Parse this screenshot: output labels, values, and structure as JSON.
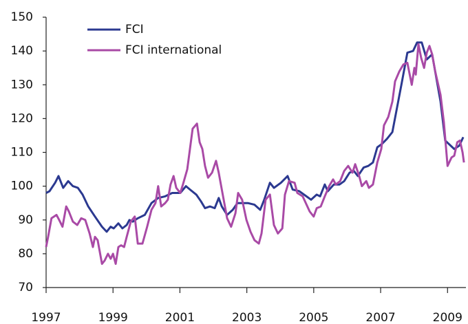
{
  "chart_data": {
    "type": "line",
    "legend": "upper left",
    "xlim": [
      1997,
      2009.55
    ],
    "xticks": [
      1997,
      1999,
      2001,
      2003,
      2005,
      2007,
      2009
    ],
    "ylim": [
      70,
      150
    ],
    "yticks": [
      70,
      80,
      90,
      100,
      110,
      120,
      130,
      140,
      150
    ],
    "series": [
      {
        "name": "FCI",
        "color": "#2b3990",
        "x": [
          1997.0,
          1997.1,
          1997.27,
          1997.37,
          1997.51,
          1997.66,
          1997.8,
          1997.95,
          1998.09,
          1998.26,
          1998.46,
          1998.67,
          1998.81,
          1998.93,
          1999.02,
          1999.16,
          1999.28,
          1999.41,
          1999.49,
          1999.59,
          1999.74,
          1999.95,
          2000.15,
          2000.35,
          2000.56,
          2000.77,
          2001.01,
          2001.18,
          2001.3,
          2001.49,
          2001.63,
          2001.75,
          2001.9,
          2002.04,
          2002.16,
          2002.25,
          2002.41,
          2002.58,
          2002.72,
          2003.03,
          2003.23,
          2003.4,
          2003.52,
          2003.69,
          2003.81,
          2004.02,
          2004.22,
          2004.37,
          2004.57,
          2004.78,
          2004.92,
          2005.09,
          2005.19,
          2005.33,
          2005.42,
          2005.6,
          2005.77,
          2005.91,
          2006.07,
          2006.2,
          2006.32,
          2006.49,
          2006.63,
          2006.77,
          2006.9,
          2007.04,
          2007.19,
          2007.35,
          2007.62,
          2007.8,
          2007.97,
          2008.09,
          2008.23,
          2008.38,
          2008.54,
          2008.79,
          2008.93,
          2009.2,
          2009.35,
          2009.47
        ],
        "values": [
          98,
          98.5,
          101,
          103,
          99.5,
          101.5,
          100,
          99.5,
          97.5,
          94,
          91,
          88,
          86.5,
          88,
          87.5,
          89,
          87.5,
          88.5,
          90,
          89.5,
          90.5,
          91.5,
          95,
          96.5,
          97,
          98,
          98,
          100,
          99,
          97.5,
          95.5,
          93.5,
          94,
          93.5,
          96.5,
          94,
          91.5,
          93,
          95,
          95,
          94.5,
          93,
          96,
          101,
          99.5,
          101,
          103,
          99,
          98.5,
          97,
          96,
          97.5,
          97,
          100.5,
          98.5,
          100.5,
          100.5,
          101.5,
          104,
          104.5,
          103,
          105.5,
          106,
          107,
          111.5,
          112.5,
          114,
          116,
          130,
          139.5,
          140,
          142.5,
          142.5,
          137.5,
          139,
          125,
          113.5,
          111,
          112,
          114.5
        ]
      },
      {
        "name": "FCI international",
        "color": "#a94aa6",
        "x": [
          1997.0,
          1997.06,
          1997.16,
          1997.31,
          1997.39,
          1997.49,
          1997.6,
          1997.68,
          1997.8,
          1997.93,
          1998.05,
          1998.17,
          1998.3,
          1998.4,
          1998.46,
          1998.54,
          1998.67,
          1998.75,
          1998.85,
          1998.93,
          1999.0,
          1999.08,
          1999.16,
          1999.24,
          1999.33,
          1999.41,
          1999.53,
          1999.65,
          1999.74,
          1999.88,
          2000.02,
          2000.15,
          2000.27,
          2000.35,
          2000.44,
          2000.56,
          2000.64,
          2000.72,
          2000.81,
          2000.89,
          2001.01,
          2001.09,
          2001.22,
          2001.3,
          2001.38,
          2001.51,
          2001.59,
          2001.67,
          2001.75,
          2001.84,
          2001.96,
          2002.08,
          2002.16,
          2002.29,
          2002.41,
          2002.53,
          2002.66,
          2002.74,
          2002.86,
          2002.99,
          2003.11,
          2003.23,
          2003.36,
          2003.44,
          2003.56,
          2003.69,
          2003.81,
          2003.93,
          2004.06,
          2004.14,
          2004.26,
          2004.43,
          2004.51,
          2004.67,
          2004.88,
          2005.0,
          2005.09,
          2005.21,
          2005.33,
          2005.46,
          2005.58,
          2005.66,
          2005.79,
          2005.91,
          2006.03,
          2006.16,
          2006.24,
          2006.36,
          2006.44,
          2006.57,
          2006.65,
          2006.77,
          2006.9,
          2007.02,
          2007.1,
          2007.23,
          2007.35,
          2007.43,
          2007.56,
          2007.68,
          2007.8,
          2007.93,
          2008.01,
          2008.05,
          2008.13,
          2008.21,
          2008.3,
          2008.38,
          2008.46,
          2008.54,
          2008.63,
          2008.79,
          2008.89,
          2009.0,
          2009.12,
          2009.2,
          2009.29,
          2009.37,
          2009.45,
          2009.49
        ],
        "values": [
          82,
          85,
          90.5,
          91.5,
          90,
          88,
          94,
          92.5,
          89.5,
          88.5,
          90.5,
          90,
          86,
          82,
          85,
          84,
          77,
          78,
          80,
          78.5,
          80,
          77,
          82,
          82.5,
          82,
          85,
          89.5,
          91,
          83,
          83,
          88,
          93,
          95,
          100,
          94,
          95,
          96,
          100.5,
          103,
          99.5,
          98,
          100.5,
          105,
          111,
          117,
          118.5,
          113,
          111,
          106,
          102.5,
          104,
          107.5,
          104,
          97,
          90.5,
          88,
          92,
          98,
          96,
          90,
          86.5,
          84,
          83,
          86,
          96,
          97.5,
          88.5,
          86,
          87.5,
          97.5,
          101.5,
          101,
          98,
          97,
          92.5,
          91,
          93.5,
          94,
          97,
          100,
          102,
          100.5,
          101.5,
          104.5,
          106,
          104,
          106.5,
          103,
          100,
          101.5,
          99.5,
          100.5,
          107,
          111,
          118,
          120.5,
          125,
          131,
          134,
          136,
          136.5,
          130,
          135,
          133,
          142,
          138,
          135,
          139.5,
          141.5,
          139,
          134,
          127,
          119,
          106,
          108.5,
          109,
          113,
          113.5,
          110,
          107
        ]
      }
    ]
  }
}
